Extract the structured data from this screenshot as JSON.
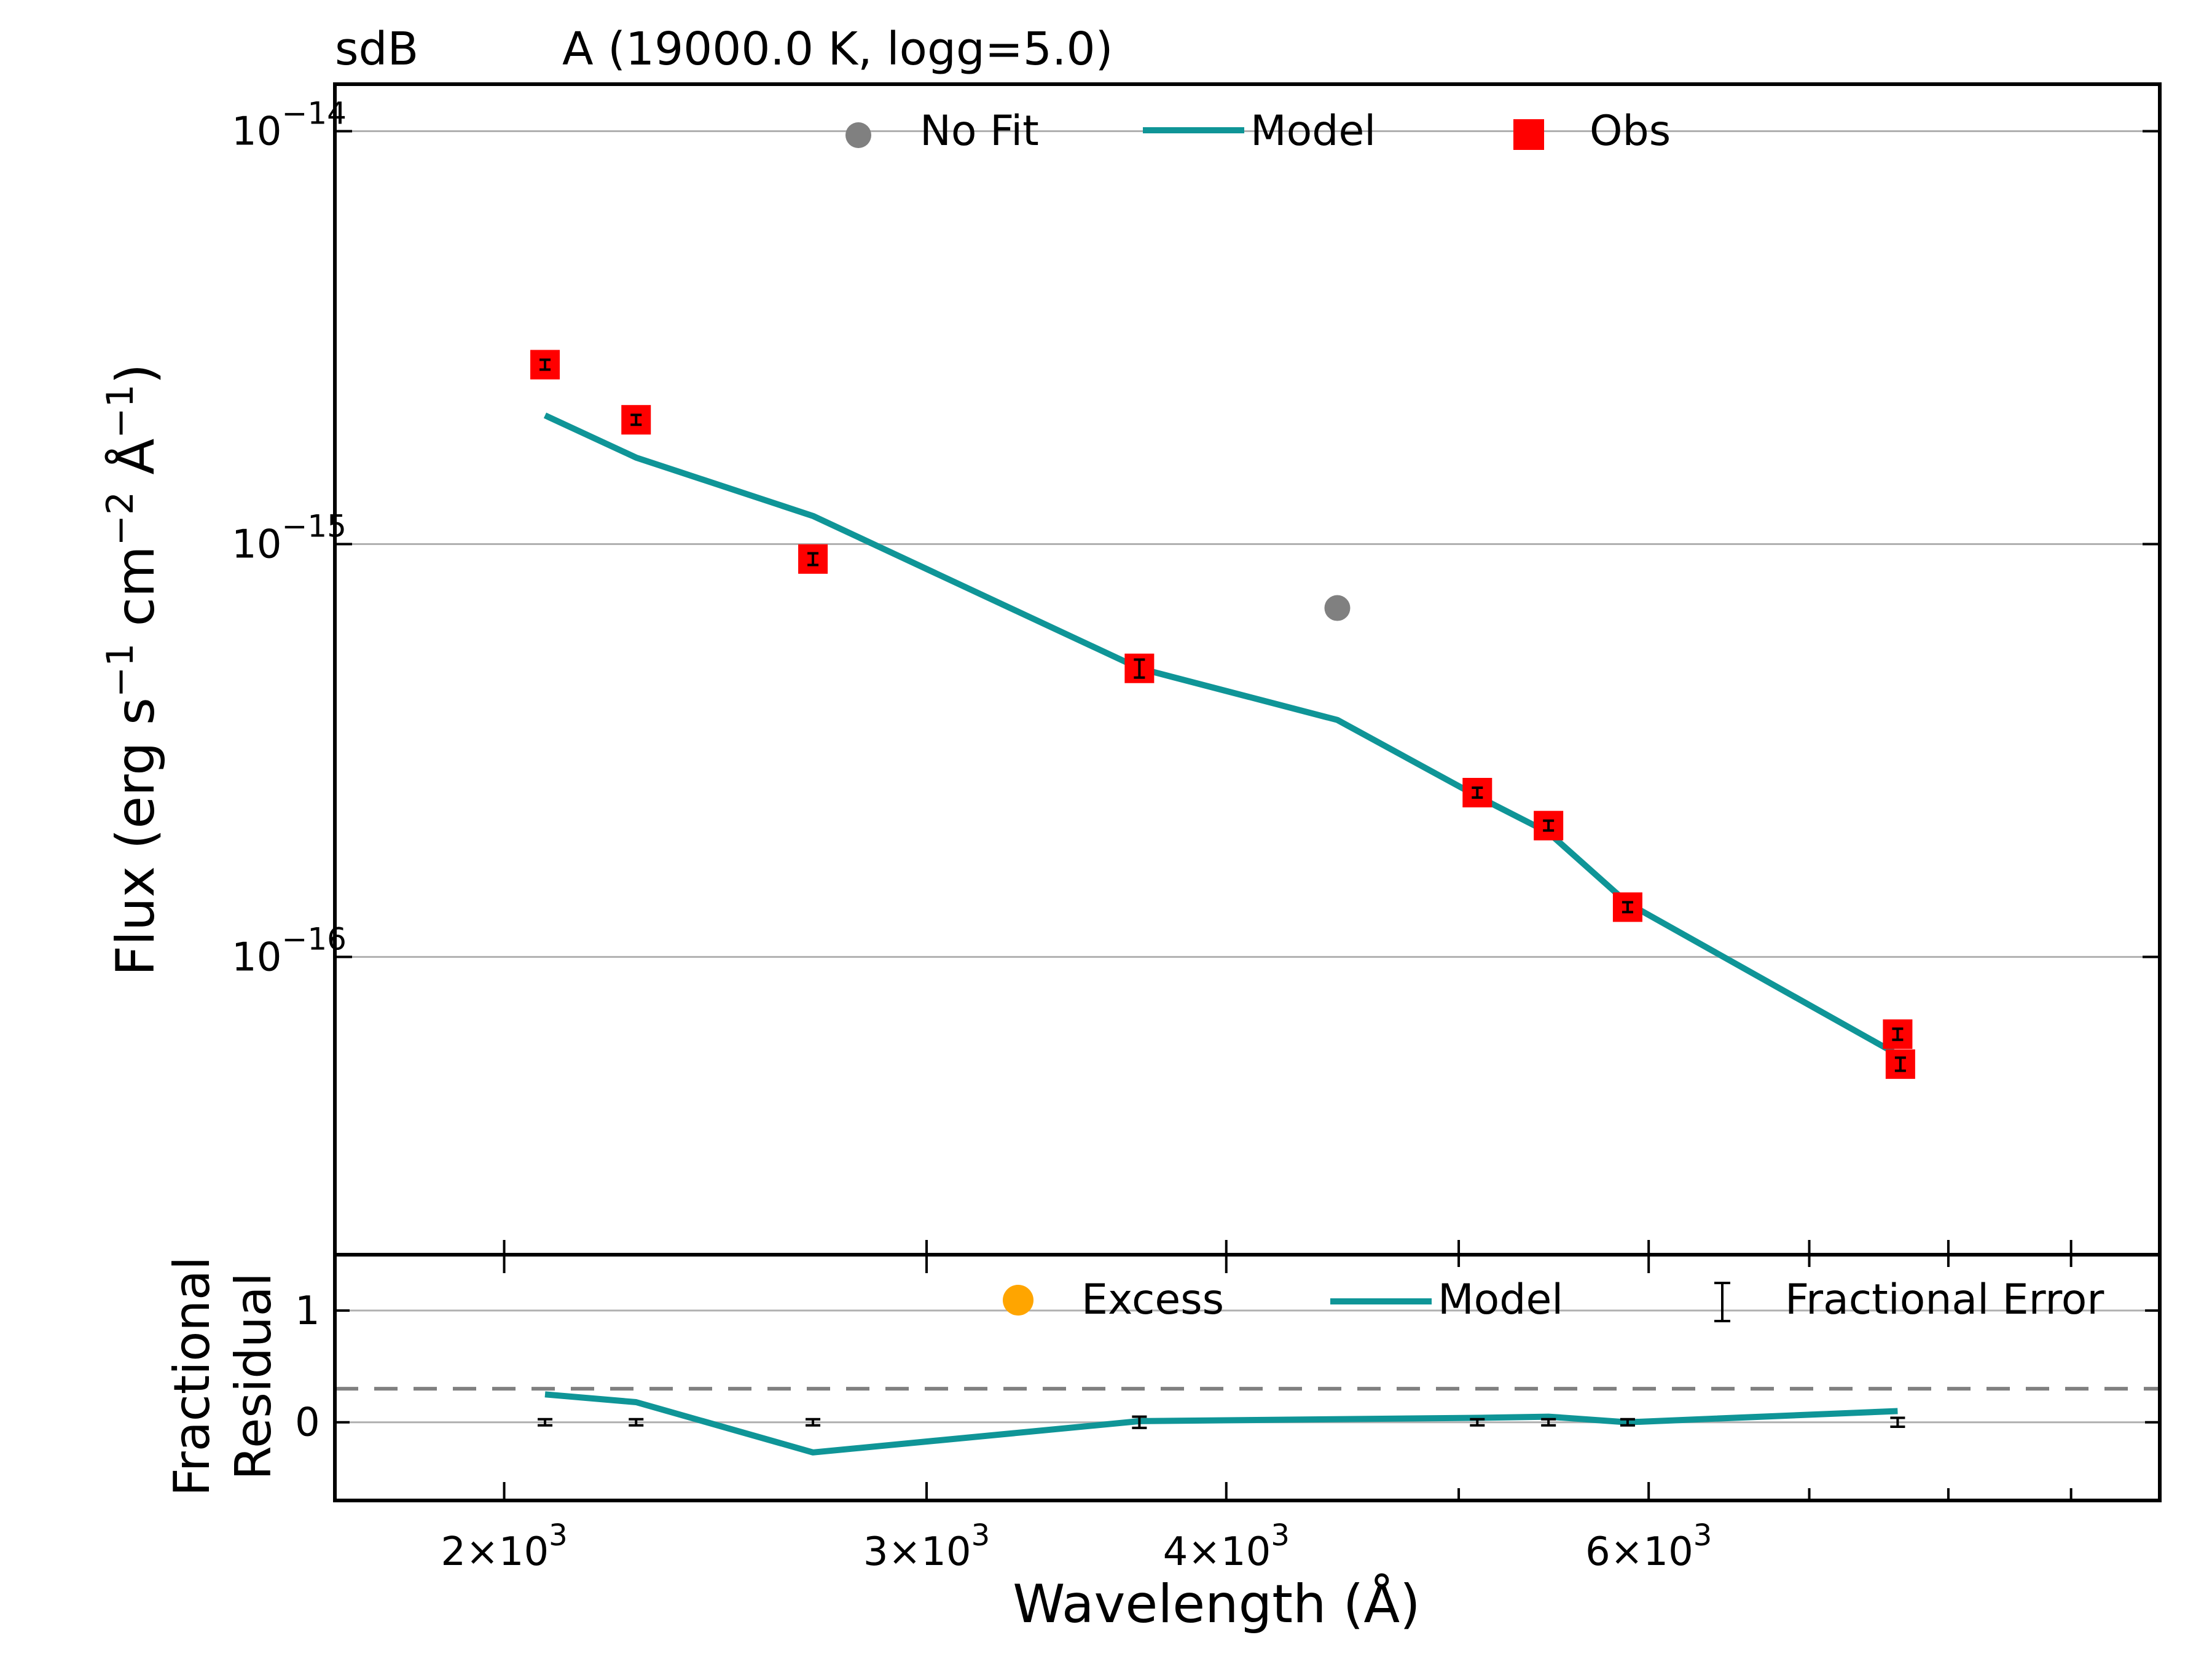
{
  "header": {
    "object_class": "sdB",
    "fit_summary": "A (19000.0 K, logg=5.0)"
  },
  "colors": {
    "model": "#0f9597",
    "obs": "#ff0000",
    "nofit": "#808080",
    "excess": "#ffa500",
    "error_bar": "#000000",
    "dashed": "#808080"
  },
  "chart_data": [
    {
      "id": "sed",
      "type": "scatter",
      "title": "",
      "xlabel": "",
      "ylabel": "Flux (erg s$^{-1}$ cm$^{-2}$ Å$^{-1}$)",
      "xscale": "log",
      "yscale": "log",
      "xlim": [
        1700,
        9800
      ],
      "ylim": [
        1.9e-17,
        1.3e-14
      ],
      "y_ticks": [
        {
          "value": 1e-14,
          "base": "10",
          "exp": "−14"
        },
        {
          "value": 1e-15,
          "base": "10",
          "exp": "−15"
        },
        {
          "value": 1e-16,
          "base": "10",
          "exp": "−16"
        }
      ],
      "grid": "horizontal",
      "legend": {
        "position": "top-center",
        "entries": [
          {
            "label": "No Fit",
            "marker": "circle",
            "color": "#808080"
          },
          {
            "label": "Model",
            "marker": "line",
            "color": "#0f9597"
          },
          {
            "label": "Obs",
            "marker": "square",
            "color": "#ff0000"
          }
        ]
      },
      "series": [
        {
          "name": "Model",
          "kind": "line",
          "points": [
            [
              2080,
              2.05e-15
            ],
            [
              2270,
              1.62e-15
            ],
            [
              2690,
              1.17e-15
            ],
            [
              3680,
              5e-16
            ],
            [
              4450,
              3.75e-16
            ],
            [
              5090,
              2.45e-16
            ],
            [
              5450,
              2e-16
            ],
            [
              5880,
              1.35e-16
            ],
            [
              7620,
              5.8e-17
            ]
          ]
        },
        {
          "name": "Obs",
          "kind": "points",
          "points": [
            [
              2080,
              2.72e-15,
              4e-17
            ],
            [
              2270,
              2e-15,
              5e-17
            ],
            [
              2690,
              9.2e-16,
              3e-17
            ],
            [
              3680,
              5e-16,
              2.5e-17
            ],
            [
              5090,
              2.5e-16,
              6e-18
            ],
            [
              5450,
              2.08e-16,
              5e-18
            ],
            [
              5880,
              1.32e-16,
              3e-18
            ],
            [
              7620,
              6.5e-17,
              2e-18
            ],
            [
              7640,
              5.5e-17,
              2e-18
            ]
          ]
        },
        {
          "name": "No Fit",
          "kind": "points",
          "points": [
            [
              4450,
              7e-16
            ]
          ]
        }
      ]
    },
    {
      "id": "residual",
      "type": "line",
      "title": "",
      "xlabel": "Wavelength (Å)",
      "ylabel": "Fractional Residual",
      "ylabel_lines": [
        "Fractional",
        "Residual"
      ],
      "xscale": "log",
      "xlim": [
        1700,
        9800
      ],
      "ylim": [
        -0.7,
        1.5
      ],
      "x_ticks": [
        {
          "value": 2000,
          "label": "2",
          "exp": "3"
        },
        {
          "value": 3000,
          "label": "3",
          "exp": "3"
        },
        {
          "value": 4000,
          "label": "4",
          "exp": "3"
        },
        {
          "value": 6000,
          "label": "6",
          "exp": "3"
        }
      ],
      "x_minor_ticks": [
        5000,
        7000,
        8000,
        9000
      ],
      "y_ticks": [
        {
          "value": 1,
          "label": "1"
        },
        {
          "value": 0,
          "label": "0"
        }
      ],
      "grid": "horizontal",
      "reference_line": {
        "y": 0.3,
        "style": "dashed"
      },
      "legend": {
        "position": "top-right",
        "entries": [
          {
            "label": "Excess",
            "marker": "circle",
            "color": "#ffa500"
          },
          {
            "label": "Model",
            "marker": "line",
            "color": "#0f9597"
          },
          {
            "label": "Fractional Error",
            "marker": "errorbar",
            "color": "#000000"
          }
        ]
      },
      "series": [
        {
          "name": "Model",
          "kind": "line",
          "points": [
            [
              2080,
              0.25
            ],
            [
              2270,
              0.18
            ],
            [
              2690,
              -0.27
            ],
            [
              3680,
              0.01
            ],
            [
              5090,
              0.04
            ],
            [
              5450,
              0.05
            ],
            [
              5880,
              0.0
            ],
            [
              7620,
              0.1
            ]
          ]
        },
        {
          "name": "Fractional Error",
          "kind": "errorbars",
          "points": [
            [
              2080,
              0.0,
              0.015
            ],
            [
              2270,
              0.0,
              0.025
            ],
            [
              2690,
              0.0,
              0.02
            ],
            [
              3680,
              0.0,
              0.05
            ],
            [
              5090,
              0.0,
              0.02
            ],
            [
              5450,
              0.0,
              0.015
            ],
            [
              5880,
              0.0,
              0.008
            ],
            [
              7620,
              0.0,
              0.04
            ]
          ]
        }
      ]
    }
  ]
}
